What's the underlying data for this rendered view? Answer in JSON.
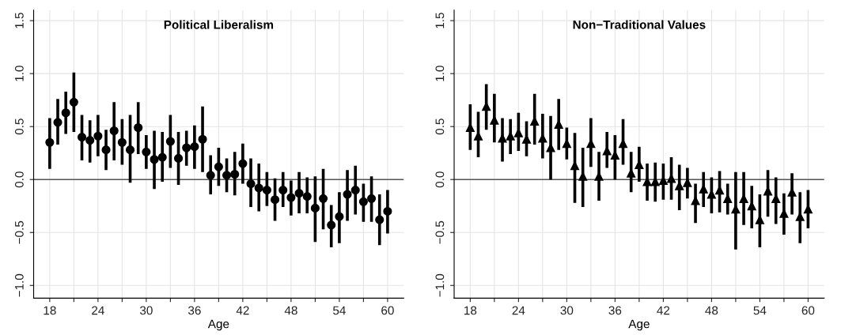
{
  "chart_data": [
    {
      "type": "scatter",
      "title": "Political Liberalism",
      "xlabel": "Age",
      "marker": "circle",
      "grid": true,
      "x": [
        18,
        19,
        20,
        21,
        22,
        23,
        24,
        25,
        26,
        27,
        28,
        29,
        30,
        31,
        32,
        33,
        34,
        35,
        36,
        37,
        38,
        39,
        40,
        41,
        42,
        43,
        44,
        45,
        46,
        47,
        48,
        49,
        50,
        51,
        52,
        53,
        54,
        55,
        56,
        57,
        58,
        59,
        60
      ],
      "series": [
        {
          "color": "#000000",
          "values": [
            0.35,
            0.54,
            0.63,
            0.73,
            0.4,
            0.37,
            0.41,
            0.28,
            0.46,
            0.35,
            0.28,
            0.49,
            0.26,
            0.19,
            0.21,
            0.36,
            0.2,
            0.3,
            0.31,
            0.38,
            0.04,
            0.12,
            0.04,
            0.05,
            0.15,
            -0.04,
            -0.08,
            -0.1,
            -0.19,
            -0.1,
            -0.17,
            -0.13,
            -0.16,
            -0.27,
            -0.18,
            -0.43,
            -0.35,
            -0.14,
            -0.1,
            -0.21,
            -0.18,
            -0.38,
            -0.3
          ],
          "errors": [
            [
              0.1,
              0.58
            ],
            [
              0.33,
              0.76
            ],
            [
              0.43,
              0.83
            ],
            [
              0.45,
              1.01
            ],
            [
              0.18,
              0.61
            ],
            [
              0.16,
              0.56
            ],
            [
              0.22,
              0.61
            ],
            [
              0.09,
              0.47
            ],
            [
              0.18,
              0.73
            ],
            [
              0.14,
              0.57
            ],
            [
              -0.03,
              0.61
            ],
            [
              0.24,
              0.73
            ],
            [
              0.1,
              0.42
            ],
            [
              -0.09,
              0.46
            ],
            [
              -0.02,
              0.45
            ],
            [
              0.11,
              0.61
            ],
            [
              -0.05,
              0.45
            ],
            [
              0.13,
              0.46
            ],
            [
              0.1,
              0.51
            ],
            [
              0.07,
              0.69
            ],
            [
              -0.14,
              0.23
            ],
            [
              -0.06,
              0.3
            ],
            [
              -0.12,
              0.2
            ],
            [
              -0.15,
              0.26
            ],
            [
              -0.04,
              0.34
            ],
            [
              -0.26,
              0.2
            ],
            [
              -0.3,
              0.15
            ],
            [
              -0.25,
              0.07
            ],
            [
              -0.39,
              0.01
            ],
            [
              -0.26,
              0.07
            ],
            [
              -0.34,
              -0.01
            ],
            [
              -0.32,
              0.07
            ],
            [
              -0.32,
              0.02
            ],
            [
              -0.59,
              0.03
            ],
            [
              -0.47,
              0.1
            ],
            [
              -0.64,
              -0.24
            ],
            [
              -0.6,
              -0.12
            ],
            [
              -0.39,
              0.09
            ],
            [
              -0.33,
              0.13
            ],
            [
              -0.4,
              -0.04
            ],
            [
              -0.4,
              0.03
            ],
            [
              -0.62,
              -0.14
            ],
            [
              -0.51,
              -0.1
            ]
          ]
        }
      ],
      "xlim": [
        16,
        62
      ],
      "xticks": [
        18,
        {
          "value": 21,
          "label": null
        },
        24,
        {
          "value": 27,
          "label": null
        },
        30,
        {
          "value": 33,
          "label": null
        },
        36,
        {
          "value": 39,
          "label": null
        },
        42,
        {
          "value": 45,
          "label": null
        },
        48,
        {
          "value": 51,
          "label": null
        },
        54,
        {
          "value": 57,
          "label": null
        },
        60
      ],
      "ylim": [
        -1.12,
        1.6
      ],
      "yticks": [
        {
          "value": -1.0,
          "label": "−1.0"
        },
        {
          "value": -0.5,
          "label": "−0.5"
        },
        {
          "value": 0,
          "label": "0.0"
        },
        {
          "value": 0.5,
          "label": "0.5"
        },
        {
          "value": 1.0,
          "label": "1.0"
        },
        {
          "value": 1.5,
          "label": "1.5"
        }
      ],
      "ref_lines": [
        {
          "axis": "y",
          "value": 0,
          "color": "#555555"
        }
      ]
    },
    {
      "type": "scatter",
      "title": "Non−Traditional Values",
      "xlabel": "Age",
      "marker": "triangle",
      "grid": true,
      "x": [
        18,
        19,
        20,
        21,
        22,
        23,
        24,
        25,
        26,
        27,
        28,
        29,
        30,
        31,
        32,
        33,
        34,
        35,
        36,
        37,
        38,
        39,
        40,
        41,
        42,
        43,
        44,
        45,
        46,
        47,
        48,
        49,
        50,
        51,
        52,
        53,
        54,
        55,
        56,
        57,
        58,
        59,
        60
      ],
      "series": [
        {
          "color": "#000000",
          "values": [
            0.49,
            0.41,
            0.69,
            0.56,
            0.39,
            0.41,
            0.44,
            0.38,
            0.55,
            0.39,
            0.3,
            0.52,
            0.34,
            0.13,
            0.03,
            0.34,
            0.03,
            0.27,
            0.23,
            0.34,
            0.06,
            0.14,
            -0.02,
            -0.02,
            -0.01,
            0.01,
            -0.06,
            -0.03,
            -0.2,
            -0.09,
            -0.14,
            -0.1,
            -0.18,
            -0.28,
            -0.18,
            -0.25,
            -0.38,
            -0.11,
            -0.18,
            -0.32,
            -0.12,
            -0.35,
            -0.28
          ],
          "errors": [
            [
              0.28,
              0.71
            ],
            [
              0.21,
              0.64
            ],
            [
              0.47,
              0.9
            ],
            [
              0.35,
              0.81
            ],
            [
              0.17,
              0.58
            ],
            [
              0.24,
              0.57
            ],
            [
              0.27,
              0.63
            ],
            [
              0.22,
              0.55
            ],
            [
              0.33,
              0.81
            ],
            [
              0.2,
              0.62
            ],
            [
              0.0,
              0.6
            ],
            [
              0.28,
              0.76
            ],
            [
              0.19,
              0.49
            ],
            [
              -0.22,
              0.44
            ],
            [
              -0.26,
              0.3
            ],
            [
              0.12,
              0.58
            ],
            [
              -0.2,
              0.26
            ],
            [
              0.11,
              0.45
            ],
            [
              0.0,
              0.42
            ],
            [
              0.14,
              0.57
            ],
            [
              -0.12,
              0.26
            ],
            [
              -0.02,
              0.31
            ],
            [
              -0.2,
              0.15
            ],
            [
              -0.21,
              0.16
            ],
            [
              -0.19,
              0.15
            ],
            [
              -0.19,
              0.21
            ],
            [
              -0.29,
              0.14
            ],
            [
              -0.18,
              0.11
            ],
            [
              -0.41,
              -0.04
            ],
            [
              -0.26,
              0.07
            ],
            [
              -0.32,
              0.02
            ],
            [
              -0.31,
              0.08
            ],
            [
              -0.33,
              -0.04
            ],
            [
              -0.66,
              0.07
            ],
            [
              -0.43,
              0.07
            ],
            [
              -0.46,
              -0.06
            ],
            [
              -0.64,
              -0.14
            ],
            [
              -0.35,
              0.09
            ],
            [
              -0.42,
              0.02
            ],
            [
              -0.52,
              -0.13
            ],
            [
              -0.33,
              0.06
            ],
            [
              -0.6,
              -0.12
            ],
            [
              -0.46,
              -0.1
            ]
          ]
        }
      ],
      "xlim": [
        16,
        62
      ],
      "xticks": [
        18,
        {
          "value": 21,
          "label": null
        },
        24,
        {
          "value": 27,
          "label": null
        },
        30,
        {
          "value": 33,
          "label": null
        },
        36,
        {
          "value": 39,
          "label": null
        },
        42,
        {
          "value": 45,
          "label": null
        },
        48,
        {
          "value": 51,
          "label": null
        },
        54,
        {
          "value": 57,
          "label": null
        },
        60
      ],
      "ylim": [
        -1.12,
        1.6
      ],
      "yticks": [
        {
          "value": -1.0,
          "label": "−1.0"
        },
        {
          "value": -0.5,
          "label": "−0.5"
        },
        {
          "value": 0,
          "label": "0.0"
        },
        {
          "value": 0.5,
          "label": "0.5"
        },
        {
          "value": 1.0,
          "label": "1.0"
        },
        {
          "value": 1.5,
          "label": "1.5"
        }
      ],
      "ref_lines": [
        {
          "axis": "y",
          "value": 0,
          "color": "#555555"
        }
      ]
    }
  ]
}
